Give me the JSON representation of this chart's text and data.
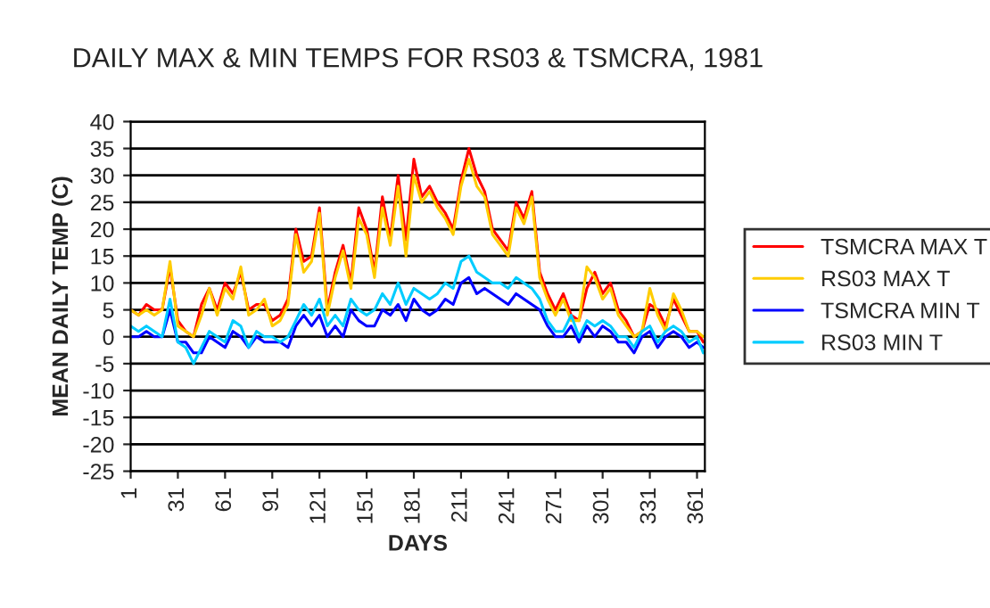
{
  "chart_data": {
    "type": "line",
    "title": "DAILY MAX & MIN TEMPS FOR RS03 & TSMCRA, 1981",
    "xlabel": "DAYS",
    "ylabel": "MEAN DAILY TEMP (C)",
    "x": [
      1,
      6,
      11,
      16,
      21,
      26,
      31,
      36,
      41,
      46,
      51,
      56,
      61,
      66,
      71,
      76,
      81,
      86,
      91,
      96,
      101,
      106,
      111,
      116,
      121,
      126,
      131,
      136,
      141,
      146,
      151,
      156,
      161,
      166,
      171,
      176,
      181,
      186,
      191,
      196,
      201,
      206,
      211,
      216,
      221,
      226,
      231,
      236,
      241,
      246,
      251,
      256,
      261,
      266,
      271,
      276,
      281,
      286,
      291,
      296,
      301,
      306,
      311,
      316,
      321,
      326,
      331,
      336,
      341,
      346,
      351,
      356,
      361,
      365
    ],
    "series": [
      {
        "name": "TSMCRA MAX T",
        "color": "#ff0000",
        "values": [
          5,
          4,
          6,
          5,
          5,
          13,
          3,
          1,
          0,
          6,
          9,
          5,
          10,
          8,
          12,
          5,
          6,
          6,
          3,
          4,
          7,
          20,
          14,
          15,
          24,
          5,
          12,
          17,
          10,
          24,
          20,
          12,
          26,
          18,
          30,
          18,
          33,
          26,
          28,
          25,
          23,
          20,
          29,
          35,
          30,
          27,
          20,
          18,
          16,
          25,
          22,
          27,
          12,
          8,
          5,
          8,
          4,
          3,
          9,
          12,
          8,
          10,
          5,
          3,
          0,
          1,
          6,
          5,
          2,
          7,
          4,
          1,
          1,
          -1
        ]
      },
      {
        "name": "RS03 MAX T",
        "color": "#ffcc00",
        "values": [
          5,
          4,
          5,
          4,
          5,
          14,
          2,
          1,
          0,
          4,
          9,
          4,
          9,
          7,
          13,
          4,
          5,
          7,
          2,
          3,
          6,
          19,
          12,
          14,
          23,
          4,
          11,
          16,
          9,
          22,
          19,
          11,
          24,
          17,
          28,
          15,
          30,
          25,
          27,
          24,
          22,
          19,
          28,
          33,
          28,
          26,
          19,
          17,
          15,
          24,
          21,
          26,
          11,
          7,
          4,
          7,
          3,
          3,
          13,
          11,
          7,
          9,
          4,
          2,
          0,
          1,
          9,
          4,
          1,
          8,
          5,
          1,
          1,
          0
        ]
      },
      {
        "name": "TSMCRA MIN T",
        "color": "#0000ff",
        "values": [
          0,
          0,
          1,
          0,
          0,
          5,
          -1,
          -1,
          -3,
          -3,
          0,
          -1,
          -2,
          1,
          0,
          -2,
          0,
          -1,
          -1,
          -1,
          -2,
          2,
          4,
          2,
          4,
          0,
          2,
          0,
          5,
          3,
          2,
          2,
          5,
          4,
          6,
          3,
          7,
          5,
          4,
          5,
          7,
          6,
          10,
          11,
          8,
          9,
          8,
          7,
          6,
          8,
          7,
          6,
          5,
          2,
          0,
          0,
          2,
          -1,
          2,
          0,
          2,
          1,
          -1,
          -1,
          -3,
          0,
          1,
          -2,
          0,
          1,
          0,
          -2,
          -1,
          -2
        ]
      },
      {
        "name": "RS03 MIN T",
        "color": "#00ccff",
        "values": [
          2,
          1,
          2,
          1,
          0,
          7,
          -1,
          -2,
          -5,
          -2,
          1,
          0,
          -1,
          3,
          2,
          -2,
          1,
          0,
          0,
          -1,
          0,
          3,
          6,
          4,
          7,
          2,
          4,
          2,
          7,
          5,
          4,
          5,
          8,
          6,
          10,
          6,
          9,
          8,
          7,
          8,
          10,
          9,
          14,
          15,
          12,
          11,
          10,
          10,
          9,
          11,
          10,
          9,
          7,
          3,
          1,
          1,
          4,
          0,
          3,
          2,
          3,
          2,
          0,
          0,
          -2,
          1,
          2,
          -1,
          1,
          2,
          1,
          -1,
          0,
          -3
        ]
      }
    ],
    "xlim": [
      1,
      366
    ],
    "xticks": [
      1,
      31,
      61,
      91,
      121,
      151,
      181,
      211,
      241,
      271,
      301,
      331,
      361
    ],
    "ylim": [
      -25,
      40
    ],
    "yticks": [
      -25,
      -20,
      -15,
      -10,
      -5,
      0,
      5,
      10,
      15,
      20,
      25,
      30,
      35,
      40
    ],
    "grid": "y",
    "legend": "right",
    "marker": "none",
    "line_style": "solid"
  }
}
